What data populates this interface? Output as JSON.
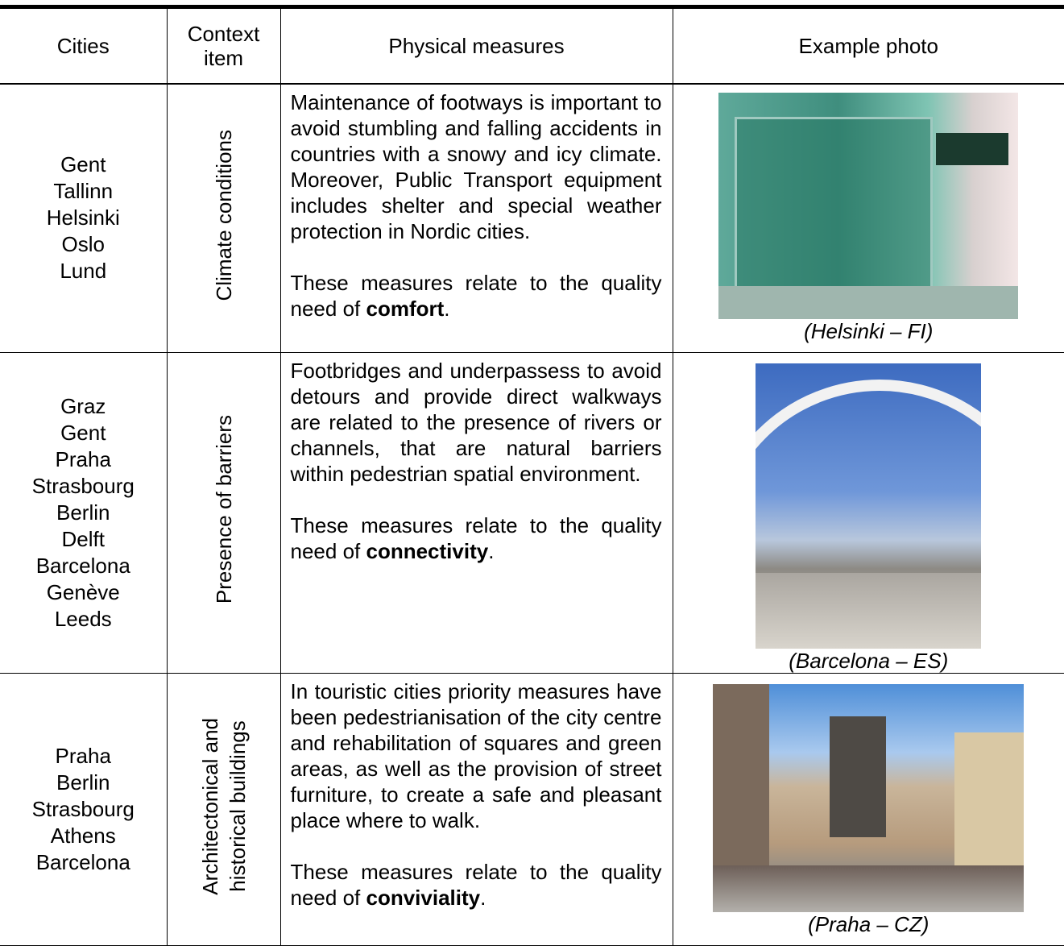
{
  "table": {
    "header": [
      "Cities",
      "Context item",
      "Physical measures",
      "Example photo"
    ],
    "rows": [
      {
        "cities": [
          "Gent",
          "Tallinn",
          "Helsinki",
          "Oslo",
          "Lund"
        ],
        "context": [
          "Climate conditions"
        ],
        "measures": {
          "paragraph": "Maintenance of footways is important to avoid stumbling and falling accidents in countries with a snowy and icy climate. Moreover, Public Transport equipment includes shelter and special weather protection in Nordic cities.",
          "note": "These measures relate to the quality need of",
          "emphasis": "comfort",
          "end": "."
        },
        "caption": "(Helsinki – FI)"
      },
      {
        "cities": [
          "Graz",
          "Gent",
          "Praha",
          "Strasbourg",
          "Berlin",
          "Delft",
          "Barcelona",
          "Genève",
          "Leeds"
        ],
        "context": [
          "Presence of barriers"
        ],
        "measures": {
          "paragraph": "Footbridges and underpassess to avoid detours and provide direct walkways are related to the presence of rivers or channels, that are natural barriers within pedestrian spatial environment.",
          "note": "These measures relate to the quality need of",
          "emphasis": "connectivity",
          "end": "."
        },
        "caption": "(Barcelona – ES)"
      },
      {
        "cities": [
          "Praha",
          "Berlin",
          "Strasbourg",
          "Athens",
          "Barcelona"
        ],
        "context": [
          "Architectonical and",
          "historical buildings"
        ],
        "measures": {
          "paragraph": "In touristic cities priority measures have been pedestrianisation of the city centre and rehabilitation of squares and green areas, as well as the provision of street furniture, to create a safe and pleasant place where to walk.",
          "note": "These measures relate to the quality need of",
          "emphasis": "conviviality",
          "end": "."
        },
        "caption": "(Praha – CZ)"
      }
    ]
  }
}
